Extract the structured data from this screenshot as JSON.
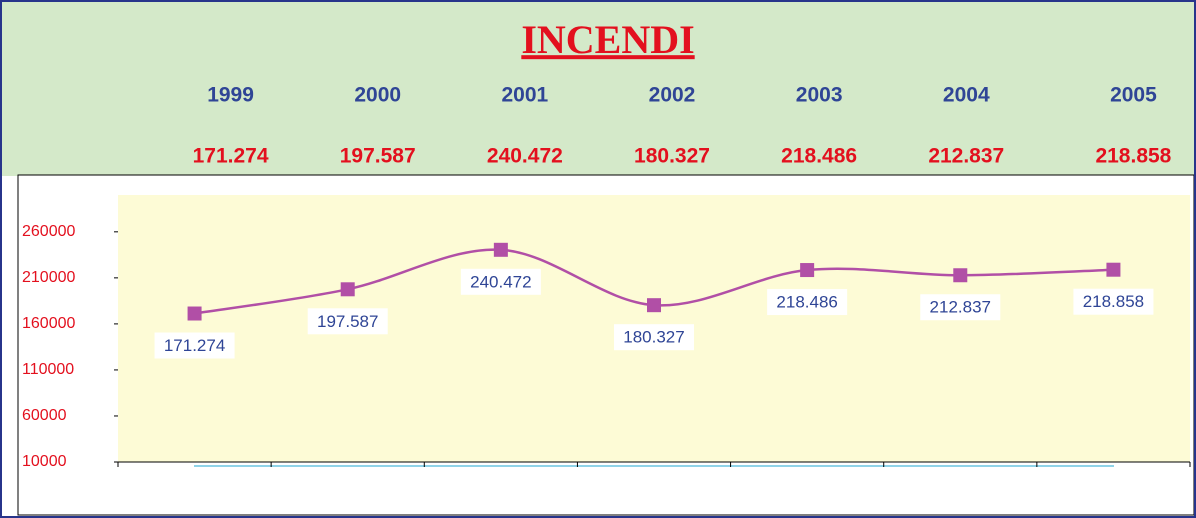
{
  "chart_data": {
    "type": "line",
    "title": "INCENDI",
    "categories": [
      "1999",
      "2000",
      "2001",
      "2002",
      "2003",
      "2004",
      "2005"
    ],
    "series": [
      {
        "name": "INCENDI",
        "color": "#b14fa6",
        "values": [
          171274,
          197587,
          240472,
          180327,
          218486,
          212837,
          218858
        ],
        "value_labels": [
          "171.274",
          "197.587",
          "240.472",
          "180.327",
          "218.486",
          "212.837",
          "218.858"
        ]
      }
    ],
    "ylim": [
      10000,
      300000
    ],
    "yticks": [
      10000,
      60000,
      110000,
      160000,
      210000,
      260000
    ],
    "smooth": true
  }
}
